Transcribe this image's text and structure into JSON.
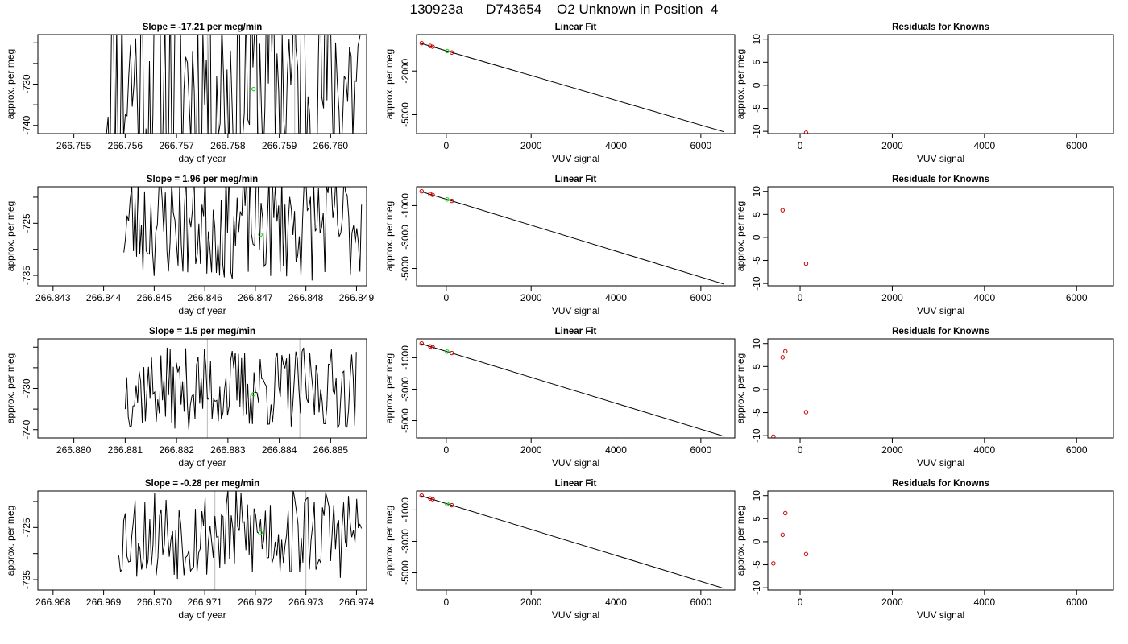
{
  "main_title": "130923a      D743654    O2 Unknown in Position  4",
  "colors": {
    "line": "#000000",
    "known": "#cc0000",
    "unknown": "#00cc00",
    "ref_line": "#bbbbbb"
  },
  "chart_data": [
    {
      "type": "line",
      "row": 0,
      "panel": "timeseries",
      "title": "Slope =  -17.21  per meg/min",
      "xlabel": "day of year",
      "ylabel": "approx. per meg",
      "xlim": [
        266.7543,
        266.7607
      ],
      "ylim": [
        -742,
        -718
      ],
      "xticks": [
        266.755,
        266.756,
        266.757,
        266.758,
        266.759,
        266.76
      ],
      "xtick_labels": [
        "266.755",
        "266.756",
        "266.757",
        "266.758",
        "266.759",
        "266.760"
      ],
      "yticks": [
        -740,
        -730
      ],
      "ytick_labels": [
        "-740",
        "-730"
      ],
      "data_range": [
        266.7556,
        266.7606
      ],
      "mean": -729,
      "amplitude": 30,
      "seed": 11,
      "ref_lines": [
        266.7576,
        266.7593
      ],
      "unknown_point": {
        "x": 266.7585,
        "y": -731.2
      }
    },
    {
      "type": "scatter",
      "row": 0,
      "panel": "linear_fit",
      "title": "Linear Fit",
      "xlabel": "VUV signal",
      "ylabel": "approx. per meg",
      "xlim": [
        -700,
        6800
      ],
      "ylim": [
        -6300,
        500
      ],
      "xticks": [
        0,
        2000,
        4000,
        6000
      ],
      "xtick_labels": [
        "0",
        "2000",
        "4000",
        "6000"
      ],
      "yticks": [
        -5000,
        -2000
      ],
      "ytick_labels": [
        "-5000",
        "-2000"
      ],
      "fit_line": {
        "x": [
          -600,
          6550
        ],
        "y": [
          -100,
          -6180
        ]
      },
      "knowns": [
        {
          "x": -580,
          "y": -90
        },
        {
          "x": -380,
          "y": -280
        },
        {
          "x": -320,
          "y": -330
        },
        {
          "x": 130,
          "y": -730
        }
      ],
      "unknowns": [
        {
          "x": 20,
          "y": -630
        }
      ]
    },
    {
      "type": "scatter",
      "row": 0,
      "panel": "residuals",
      "title": "Residuals for Knowns",
      "xlabel": "VUV signal",
      "ylabel": "approx. per meg",
      "xlim": [
        -700,
        6800
      ],
      "ylim": [
        -10.5,
        11
      ],
      "xticks": [
        0,
        2000,
        4000,
        6000
      ],
      "xtick_labels": [
        "0",
        "2000",
        "4000",
        "6000"
      ],
      "yticks": [
        -10,
        -5,
        0,
        5,
        10
      ],
      "ytick_labels": [
        "-10",
        "-5",
        "0",
        "5",
        "10"
      ],
      "knowns": [
        {
          "x": 130,
          "y": -10.3
        }
      ]
    },
    {
      "type": "line",
      "row": 1,
      "panel": "timeseries",
      "title": "Slope =  1.96  per meg/min",
      "xlabel": "day of year",
      "ylabel": "approx. per meg",
      "xlim": [
        266.8427,
        266.8492
      ],
      "ylim": [
        -737,
        -718
      ],
      "xticks": [
        266.843,
        266.844,
        266.845,
        266.846,
        266.847,
        266.848,
        266.849
      ],
      "xtick_labels": [
        "266.843",
        "266.844",
        "266.845",
        "266.846",
        "266.847",
        "266.848",
        "266.849"
      ],
      "yticks": [
        -735,
        -725
      ],
      "ytick_labels": [
        "-735",
        "-725"
      ],
      "data_range": [
        266.8444,
        266.8491
      ],
      "mean": -725,
      "amplitude": 11,
      "seed": 23,
      "ref_lines": [],
      "unknown_point": {
        "x": 266.8471,
        "y": -727.2
      }
    },
    {
      "type": "scatter",
      "row": 1,
      "panel": "linear_fit",
      "title": "Linear Fit",
      "xlabel": "VUV signal",
      "ylabel": "approx. per meg",
      "xlim": [
        -700,
        6800
      ],
      "ylim": [
        -6100,
        200
      ],
      "xticks": [
        0,
        2000,
        4000,
        6000
      ],
      "xtick_labels": [
        "0",
        "2000",
        "4000",
        "6000"
      ],
      "yticks": [
        -5000,
        -3000,
        -1000
      ],
      "ytick_labels": [
        "-5000",
        "-3000",
        "-1000"
      ],
      "fit_line": {
        "x": [
          -600,
          6550
        ],
        "y": [
          -100,
          -6000
        ]
      },
      "knowns": [
        {
          "x": -580,
          "y": -90
        },
        {
          "x": -380,
          "y": -270
        },
        {
          "x": -320,
          "y": -320
        },
        {
          "x": 130,
          "y": -700
        }
      ],
      "unknowns": [
        {
          "x": 20,
          "y": -610
        }
      ]
    },
    {
      "type": "scatter",
      "row": 1,
      "panel": "residuals",
      "title": "Residuals for Knowns",
      "xlabel": "VUV signal",
      "ylabel": "approx. per meg",
      "xlim": [
        -700,
        6800
      ],
      "ylim": [
        -10.5,
        11
      ],
      "xticks": [
        0,
        2000,
        4000,
        6000
      ],
      "xtick_labels": [
        "0",
        "2000",
        "4000",
        "6000"
      ],
      "yticks": [
        -10,
        -5,
        0,
        5,
        10
      ],
      "ytick_labels": [
        "-10",
        "-5",
        "0",
        "5",
        "10"
      ],
      "knowns": [
        {
          "x": -380,
          "y": 5.9
        },
        {
          "x": 130,
          "y": -5.7
        }
      ]
    },
    {
      "type": "line",
      "row": 2,
      "panel": "timeseries",
      "title": "Slope =  1.5  per meg/min",
      "xlabel": "day of year",
      "ylabel": "approx. per meg",
      "xlim": [
        266.8793,
        266.8857
      ],
      "ylim": [
        -742,
        -718
      ],
      "xticks": [
        266.88,
        266.881,
        266.882,
        266.883,
        266.884,
        266.885
      ],
      "xtick_labels": [
        "266.880",
        "266.881",
        "266.882",
        "266.883",
        "266.884",
        "266.885"
      ],
      "yticks": [
        -740,
        -730
      ],
      "ytick_labels": [
        "-740",
        "-730"
      ],
      "data_range": [
        266.881,
        266.8855
      ],
      "mean": -730,
      "amplitude": 10,
      "seed": 37,
      "ref_lines": [
        266.8826,
        266.8844
      ],
      "unknown_point": {
        "x": 266.8835,
        "y": -731.4
      }
    },
    {
      "type": "scatter",
      "row": 2,
      "panel": "linear_fit",
      "title": "Linear Fit",
      "xlabel": "VUV signal",
      "ylabel": "approx. per meg",
      "xlim": [
        -700,
        6800
      ],
      "ylim": [
        -6100,
        200
      ],
      "xticks": [
        0,
        2000,
        4000,
        6000
      ],
      "xtick_labels": [
        "0",
        "2000",
        "4000",
        "6000"
      ],
      "yticks": [
        -5000,
        -3000,
        -1000
      ],
      "ytick_labels": [
        "-5000",
        "-3000",
        "-1000"
      ],
      "fit_line": {
        "x": [
          -600,
          6550
        ],
        "y": [
          -100,
          -6000
        ]
      },
      "knowns": [
        {
          "x": -580,
          "y": -90
        },
        {
          "x": -380,
          "y": -270
        },
        {
          "x": -320,
          "y": -320
        },
        {
          "x": 130,
          "y": -700
        }
      ],
      "unknowns": [
        {
          "x": 20,
          "y": -610
        }
      ]
    },
    {
      "type": "scatter",
      "row": 2,
      "panel": "residuals",
      "title": "Residuals for Knowns",
      "xlabel": "VUV signal",
      "ylabel": "approx. per meg",
      "xlim": [
        -700,
        6800
      ],
      "ylim": [
        -10.5,
        11
      ],
      "xticks": [
        0,
        2000,
        4000,
        6000
      ],
      "xtick_labels": [
        "0",
        "2000",
        "4000",
        "6000"
      ],
      "yticks": [
        -10,
        -5,
        0,
        5,
        10
      ],
      "ytick_labels": [
        "-10",
        "-5",
        "0",
        "5",
        "10"
      ],
      "knowns": [
        {
          "x": -580,
          "y": -10.2
        },
        {
          "x": -380,
          "y": 7.0
        },
        {
          "x": -320,
          "y": 8.3
        },
        {
          "x": 130,
          "y": -4.9
        }
      ]
    },
    {
      "type": "line",
      "row": 3,
      "panel": "timeseries",
      "title": "Slope =  -0.28  per meg/min",
      "xlabel": "day of year",
      "ylabel": "approx. per meg",
      "xlim": [
        266.9677,
        266.9742
      ],
      "ylim": [
        -737,
        -718
      ],
      "xticks": [
        266.968,
        266.969,
        266.97,
        266.971,
        266.972,
        266.973,
        266.974
      ],
      "xtick_labels": [
        "266.968",
        "266.969",
        "266.970",
        "266.971",
        "266.972",
        "266.973",
        "266.974"
      ],
      "yticks": [
        -735,
        -725
      ],
      "ytick_labels": [
        "-735",
        "-725"
      ],
      "data_range": [
        266.9693,
        266.9741
      ],
      "mean": -726,
      "amplitude": 9,
      "seed": 53,
      "ref_lines": [
        266.9712,
        266.973
      ],
      "unknown_point": {
        "x": 266.9721,
        "y": -726.0
      }
    },
    {
      "type": "scatter",
      "row": 3,
      "panel": "linear_fit",
      "title": "Linear Fit",
      "xlabel": "VUV signal",
      "ylabel": "approx. per meg",
      "xlim": [
        -700,
        6800
      ],
      "ylim": [
        -6100,
        200
      ],
      "xticks": [
        0,
        2000,
        4000,
        6000
      ],
      "xtick_labels": [
        "0",
        "2000",
        "4000",
        "6000"
      ],
      "yticks": [
        -5000,
        -3000,
        -1000
      ],
      "ytick_labels": [
        "-5000",
        "-3000",
        "-1000"
      ],
      "fit_line": {
        "x": [
          -600,
          6550
        ],
        "y": [
          -100,
          -6000
        ]
      },
      "knowns": [
        {
          "x": -580,
          "y": -90
        },
        {
          "x": -380,
          "y": -270
        },
        {
          "x": -320,
          "y": -320
        },
        {
          "x": 130,
          "y": -700
        }
      ],
      "unknowns": [
        {
          "x": 20,
          "y": -610
        }
      ]
    },
    {
      "type": "scatter",
      "row": 3,
      "panel": "residuals",
      "title": "Residuals for Knowns",
      "xlabel": "VUV signal",
      "ylabel": "approx. per meg",
      "xlim": [
        -700,
        6800
      ],
      "ylim": [
        -10.5,
        11
      ],
      "xticks": [
        0,
        2000,
        4000,
        6000
      ],
      "xtick_labels": [
        "0",
        "2000",
        "4000",
        "6000"
      ],
      "yticks": [
        -10,
        -5,
        0,
        5,
        10
      ],
      "ytick_labels": [
        "-10",
        "-5",
        "0",
        "5",
        "10"
      ],
      "knowns": [
        {
          "x": -580,
          "y": -4.7
        },
        {
          "x": -380,
          "y": 1.5
        },
        {
          "x": -320,
          "y": 6.2
        },
        {
          "x": 130,
          "y": -2.7
        }
      ]
    }
  ]
}
